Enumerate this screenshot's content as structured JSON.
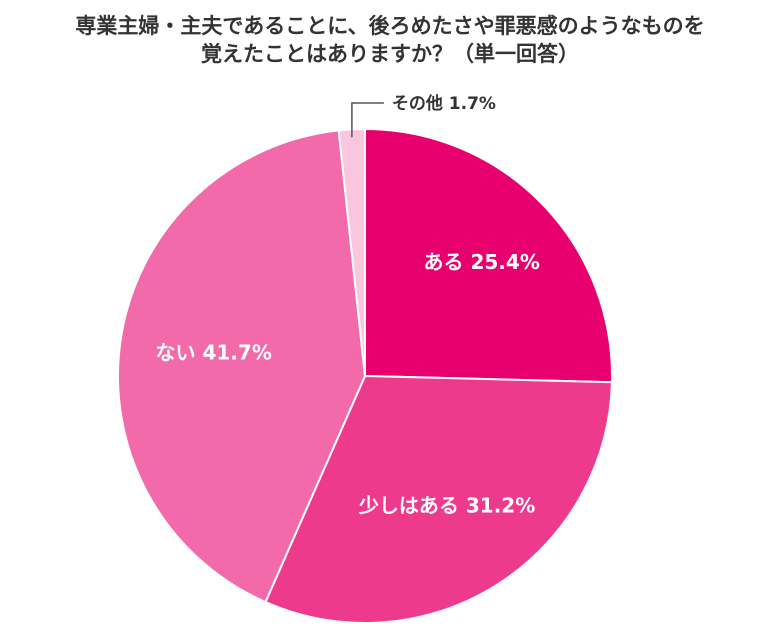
{
  "chart_data": {
    "type": "pie",
    "title_line1": "専業主婦・主夫であることに、後ろめたさや罪悪感のようなものを",
    "title_line2": "覚えたことはありますか？（単一回答）",
    "slices": [
      {
        "label": "ある 25.4%",
        "name": "ある",
        "value": 25.4,
        "color": "#e8006f"
      },
      {
        "label": "少しはある 31.2%",
        "name": "少しはある",
        "value": 31.2,
        "color": "#ee3a8c"
      },
      {
        "label": "ない 41.7%",
        "name": "ない",
        "value": 41.7,
        "color": "#f26aa9"
      },
      {
        "label": "その他 1.7%",
        "name": "その他",
        "value": 1.7,
        "color": "#f9c6de"
      }
    ]
  }
}
